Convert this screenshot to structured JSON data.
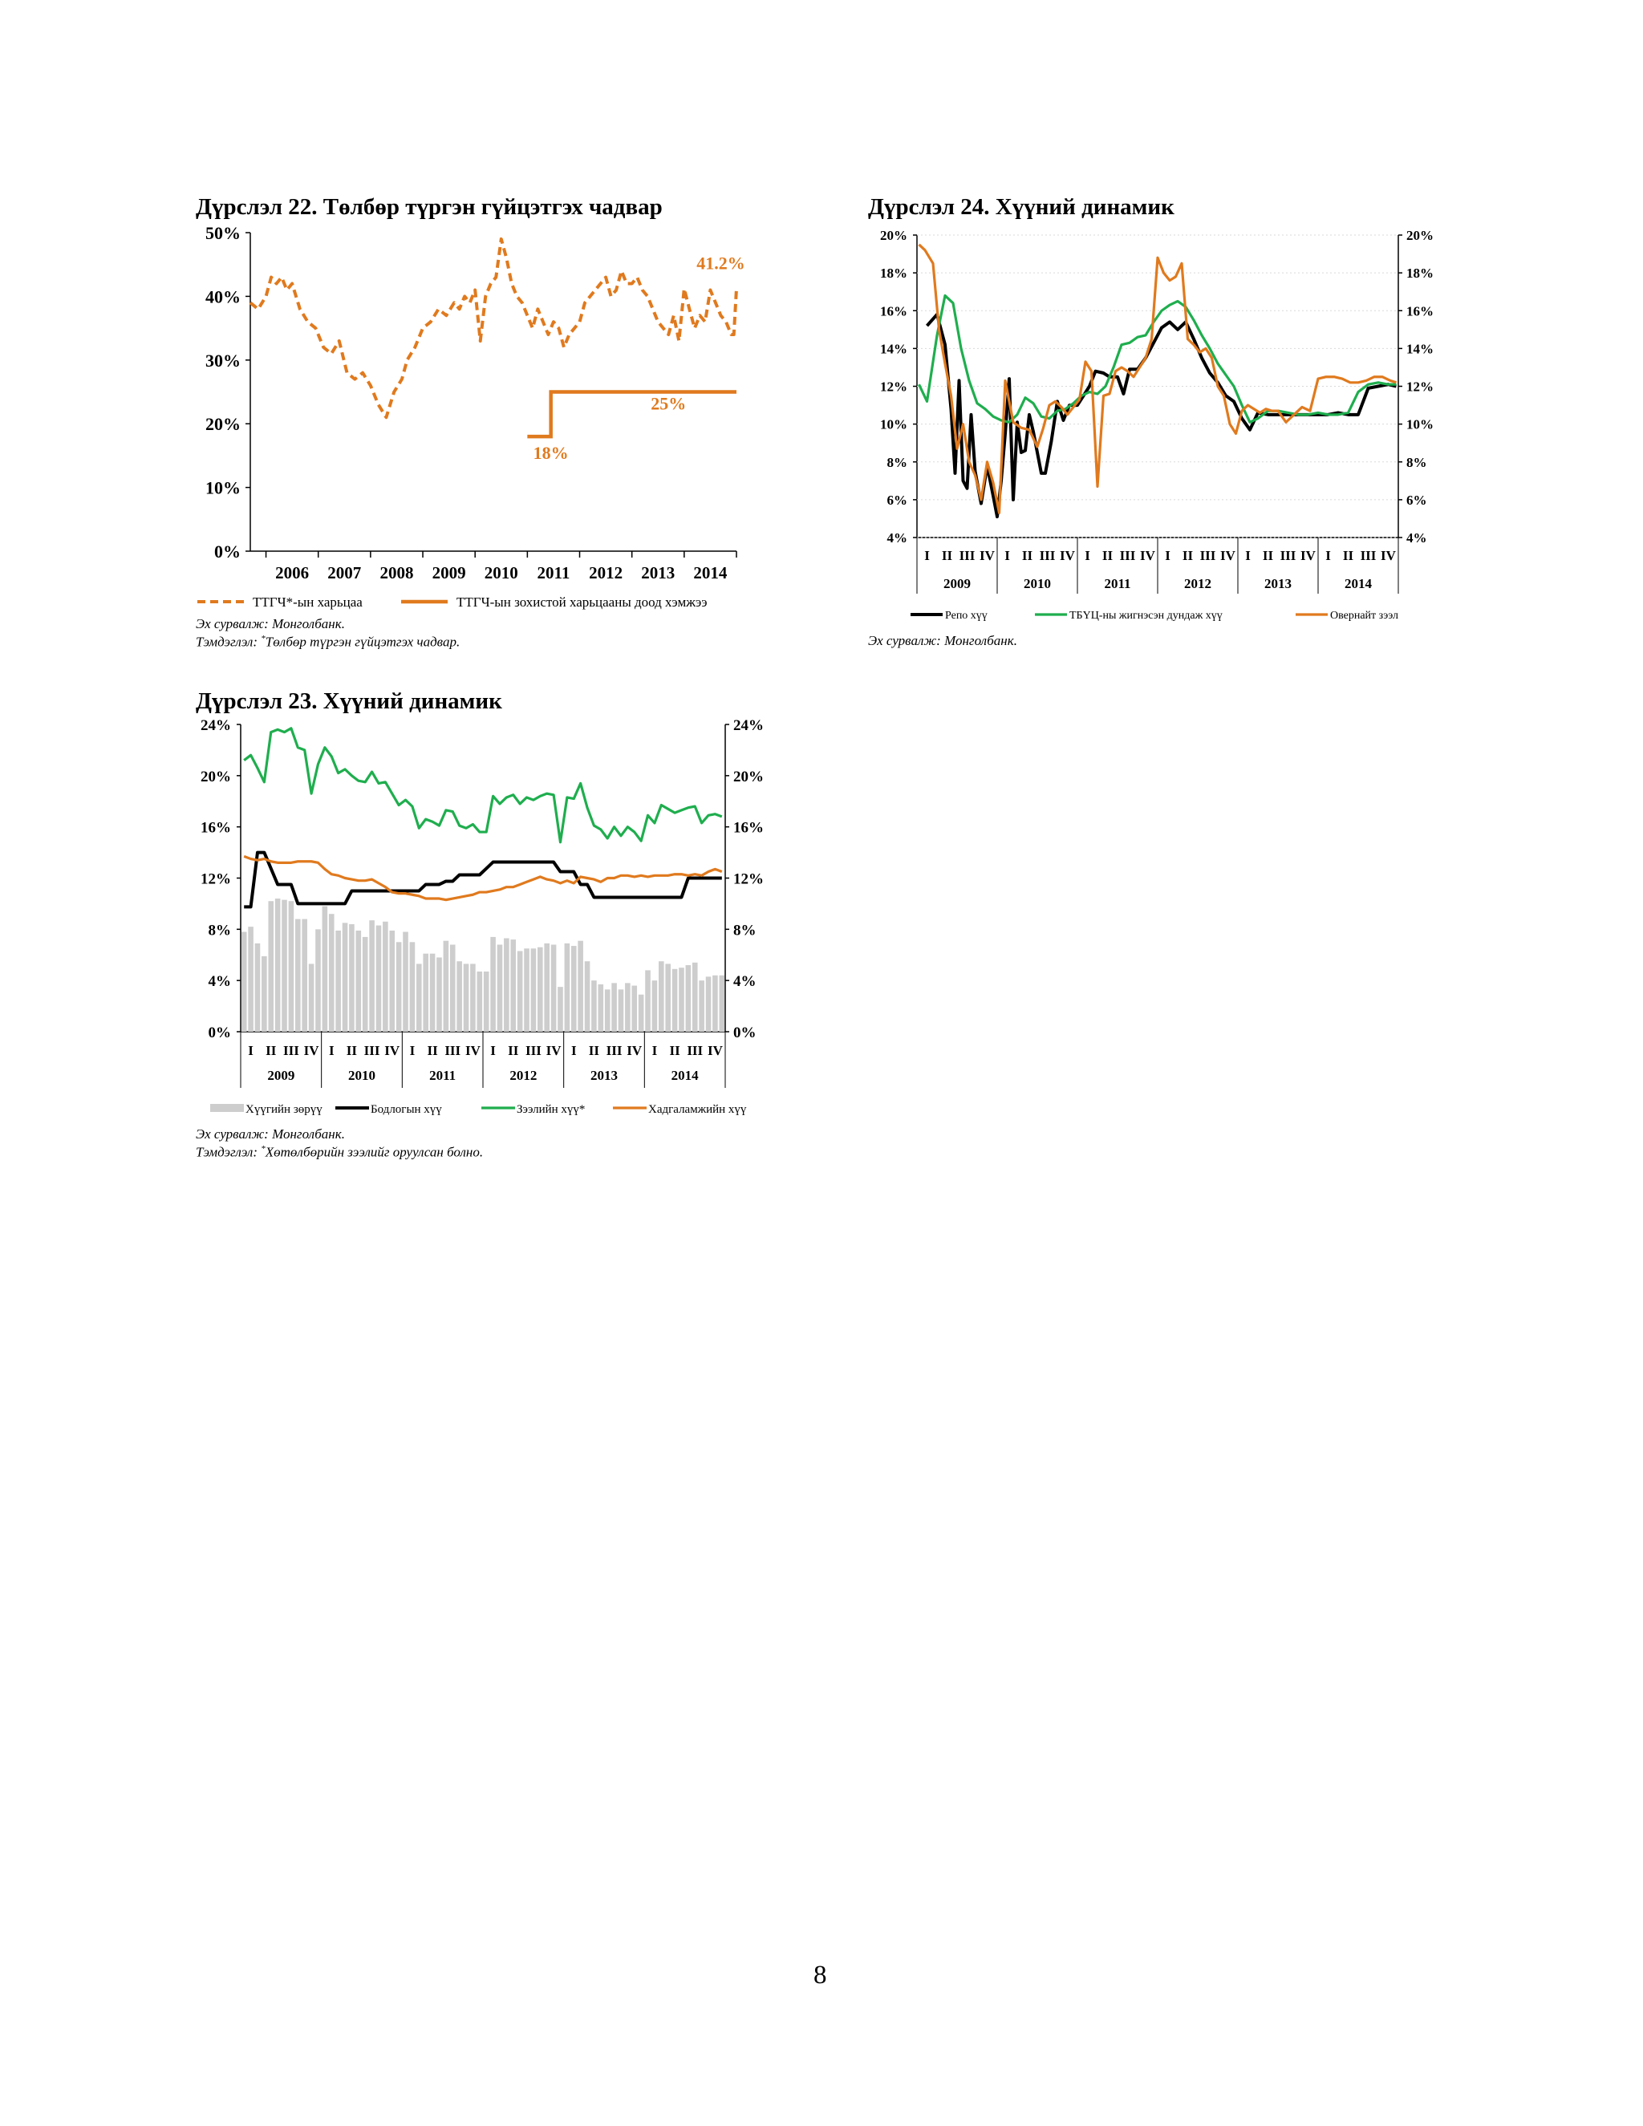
{
  "page_number": "8",
  "colors": {
    "orange": "#E07A1E",
    "black": "#000000",
    "green": "#1FAE4E",
    "grey": "#CDCDCD"
  },
  "figures": {
    "fig22": {
      "title": "Дүрслэл 22. Төлбөр түргэн гүйцэтгэх чадвар",
      "source": "Эх сурвалж: Монголбанк.",
      "note_prefix": "Тэмдэглэл: ",
      "note_mark": "*",
      "note_text": "Төлбөр түргэн гүйцэтгэх чадвар."
    },
    "fig23": {
      "title": "Дүрслэл 23. Хүүний динамик",
      "source": "Эх сурвалж: Монголбанк.",
      "note_prefix": "Тэмдэглэл: ",
      "note_mark": "*",
      "note_text": "Хөтөлбөрийн зээлийг оруулсан болно."
    },
    "fig24": {
      "title": "Дүрслэл 24. Хүүний динамик",
      "source": "Эх сурвалж: Монголбанк."
    }
  },
  "chart_data": [
    {
      "id": "fig22",
      "type": "line",
      "title": "Дүрслэл 22. Төлбөр түргэн гүйцэтгэх чадвар",
      "ylim": [
        0,
        50
      ],
      "yticks": [
        0,
        10,
        20,
        30,
        40,
        50
      ],
      "ytick_labels": [
        "0%",
        "10%",
        "20%",
        "30%",
        "40%",
        "50%"
      ],
      "xlim": [
        2005.6,
        2014.9
      ],
      "x_labels": [
        "2006",
        "2007",
        "2008",
        "2009",
        "2010",
        "2011",
        "2012",
        "2013",
        "2014"
      ],
      "annotations": [
        {
          "text": "41.2%",
          "x": 2014.6,
          "y": 44.3
        },
        {
          "text": "25%",
          "x": 2013.6,
          "y": 22.2
        },
        {
          "text": "18%",
          "x": 2011.35,
          "y": 14.5
        }
      ],
      "series": [
        {
          "name": "ТТГЧ*-ын харьцаа",
          "style": "dashed",
          "x": [
            2005.6,
            2005.75,
            2005.9,
            2006.0,
            2006.1,
            2006.2,
            2006.3,
            2006.4,
            2006.55,
            2006.7,
            2006.85,
            2007.0,
            2007.15,
            2007.3,
            2007.45,
            2007.6,
            2007.75,
            2007.9,
            2008.05,
            2008.2,
            2008.35,
            2008.5,
            2008.6,
            2008.75,
            2008.9,
            2009.05,
            2009.2,
            2009.35,
            2009.5,
            2009.6,
            2009.7,
            2009.8,
            2009.9,
            2010.0,
            2010.1,
            2010.2,
            2010.3,
            2010.4,
            2010.5,
            2010.6,
            2010.7,
            2010.8,
            2010.9,
            2011.0,
            2011.1,
            2011.2,
            2011.3,
            2011.4,
            2011.5,
            2011.6,
            2011.7,
            2011.8,
            2011.9,
            2012.0,
            2012.1,
            2012.2,
            2012.3,
            2012.4,
            2012.5,
            2012.6,
            2012.7,
            2012.8,
            2012.9,
            2013.0,
            2013.1,
            2013.2,
            2013.3,
            2013.4,
            2013.5,
            2013.6,
            2013.7,
            2013.8,
            2013.9,
            2014.0,
            2014.1,
            2014.2,
            2014.3,
            2014.4,
            2014.5,
            2014.6,
            2014.7,
            2014.8,
            2014.85,
            2014.9
          ],
          "y": [
            39,
            38,
            40,
            43,
            42,
            43,
            41,
            42,
            38,
            36,
            35,
            32,
            31,
            33,
            28,
            27,
            28,
            26,
            23,
            21,
            25,
            27,
            30,
            32,
            35,
            36,
            38,
            37,
            39,
            38,
            40,
            39,
            41,
            33,
            40,
            42,
            43,
            49,
            46,
            42,
            40,
            39,
            37,
            35,
            38,
            36,
            34,
            36,
            35,
            32,
            34,
            35,
            36,
            39,
            40,
            41,
            42,
            43,
            40,
            41,
            44,
            42,
            42,
            43,
            41,
            40,
            38,
            36,
            35,
            34,
            37,
            33,
            41.2,
            38,
            35,
            37,
            36,
            41,
            39,
            37,
            36,
            34,
            34,
            41.2
          ]
        },
        {
          "name": "ТТГЧ-ын зохистой харьцааны доод хэмжээ",
          "style": "solid",
          "x": [
            2010.9,
            2011.35,
            2011.35,
            2011.45,
            2014.9
          ],
          "y": [
            18,
            18,
            25,
            25,
            25
          ]
        }
      ]
    },
    {
      "id": "fig23",
      "type": "bar+line",
      "title": "Дүрслэл 23. Хүүний динамик",
      "ylim": [
        0,
        24
      ],
      "yticks": [
        0,
        4,
        8,
        12,
        16,
        20,
        24
      ],
      "ytick_labels": [
        "0%",
        "4%",
        "8%",
        "12%",
        "16%",
        "20%",
        "24%"
      ],
      "quarters": [
        "I",
        "II",
        "III",
        "IV"
      ],
      "years": [
        "2009",
        "2010",
        "2011",
        "2012",
        "2013",
        "2014"
      ],
      "series": [
        {
          "name": "Хүүгийн зөрүү",
          "kind": "bar",
          "values": [
            7.8,
            8.2,
            6.9,
            5.9,
            10.2,
            10.4,
            10.3,
            10.2,
            8.8,
            8.8,
            5.3,
            8,
            9.8,
            9.2,
            7.9,
            8.5,
            8.4,
            7.9,
            7.4,
            8.7,
            8.3,
            8.6,
            7.9,
            7,
            7.8,
            7,
            5.3,
            6.1,
            6.1,
            5.8,
            7.1,
            6.8,
            5.5,
            5.3,
            5.3,
            4.7,
            4.7,
            7.4,
            6.8,
            7.3,
            7.2,
            6.3,
            6.5,
            6.5,
            6.6,
            6.9,
            6.8,
            3.5,
            6.9,
            6.7,
            7.1,
            5.5,
            4,
            3.7,
            3.3,
            3.8,
            3.3,
            3.8,
            3.6,
            2.9,
            4.8,
            4,
            5.5,
            5.3,
            4.9,
            5,
            5.2,
            5.4,
            4,
            4.3,
            4.4,
            4.4
          ]
        },
        {
          "name": "Бодлогын хүү",
          "kind": "line",
          "values": [
            9.75,
            9.75,
            14,
            14,
            12.75,
            11.5,
            11.5,
            11.5,
            10,
            10,
            10,
            10,
            10,
            10,
            10,
            10,
            11,
            11,
            11,
            11,
            11,
            11,
            11,
            11,
            11,
            11,
            11,
            11.5,
            11.5,
            11.5,
            11.75,
            11.75,
            12.25,
            12.25,
            12.25,
            12.25,
            12.75,
            13.25,
            13.25,
            13.25,
            13.25,
            13.25,
            13.25,
            13.25,
            13.25,
            13.25,
            13.25,
            12.5,
            12.5,
            12.5,
            11.5,
            11.5,
            10.5,
            10.5,
            10.5,
            10.5,
            10.5,
            10.5,
            10.5,
            10.5,
            10.5,
            10.5,
            10.5,
            10.5,
            10.5,
            10.5,
            12,
            12,
            12,
            12,
            12,
            12
          ]
        },
        {
          "name": "Зээлийн хүү*",
          "kind": "line",
          "values": [
            21.2,
            21.6,
            20.6,
            19.5,
            23.4,
            23.6,
            23.4,
            23.7,
            22.2,
            22.0,
            18.6,
            20.9,
            22.2,
            21.5,
            20.2,
            20.5,
            20.0,
            19.6,
            19.5,
            20.3,
            19.4,
            19.5,
            18.6,
            17.7,
            18.1,
            17.6,
            15.9,
            16.6,
            16.4,
            16.1,
            17.3,
            17.2,
            16.1,
            15.9,
            16.2,
            15.6,
            15.6,
            18.4,
            17.8,
            18.3,
            18.5,
            17.8,
            18.3,
            18.1,
            18.4,
            18.6,
            18.5,
            14.8,
            18.3,
            18.2,
            19.4,
            17.5,
            16.1,
            15.8,
            15.1,
            16.0,
            15.3,
            16.0,
            15.6,
            14.9,
            16.9,
            16.3,
            17.7,
            17.4,
            17.1,
            17.3,
            17.5,
            17.6,
            16.3,
            16.9,
            17.0,
            16.8
          ]
        },
        {
          "name": "Хадгаламжийн хүү",
          "kind": "line",
          "values": [
            13.7,
            13.5,
            13.4,
            13.5,
            13.3,
            13.2,
            13.2,
            13.2,
            13.3,
            13.3,
            13.3,
            13.2,
            12.7,
            12.3,
            12.2,
            12.0,
            11.9,
            11.8,
            11.8,
            11.9,
            11.6,
            11.3,
            10.9,
            10.8,
            10.8,
            10.7,
            10.6,
            10.4,
            10.4,
            10.4,
            10.3,
            10.4,
            10.5,
            10.6,
            10.7,
            10.9,
            10.9,
            11.0,
            11.1,
            11.3,
            11.3,
            11.5,
            11.7,
            11.9,
            12.1,
            11.9,
            11.8,
            11.6,
            11.8,
            11.6,
            12.1,
            12.0,
            11.9,
            11.7,
            12.0,
            12.0,
            12.2,
            12.2,
            12.1,
            12.2,
            12.1,
            12.2,
            12.2,
            12.2,
            12.3,
            12.3,
            12.2,
            12.3,
            12.2,
            12.5,
            12.7,
            12.5
          ]
        }
      ]
    },
    {
      "id": "fig24",
      "type": "line",
      "title": "Дүрслэл 24. Хүүний динамик",
      "ylim": [
        4,
        20
      ],
      "yticks": [
        4,
        6,
        8,
        10,
        12,
        14,
        16,
        18,
        20
      ],
      "ytick_labels": [
        "4%",
        "6%",
        "8%",
        "10%",
        "12%",
        "14%",
        "16%",
        "18%",
        "20%"
      ],
      "quarters": [
        "I",
        "II",
        "III",
        "IV"
      ],
      "years": [
        "2009",
        "2010",
        "2011",
        "2012",
        "2013",
        "2014"
      ],
      "series": [
        {
          "name": "Репо хүү",
          "color": "black",
          "t": [
            0.5,
            1.0,
            1.4,
            1.7,
            1.9,
            2.1,
            2.3,
            2.5,
            2.7,
            2.9,
            3.2,
            3.5,
            3.8,
            4.0,
            4.2,
            4.4,
            4.6,
            4.8,
            5.0,
            5.2,
            5.4,
            5.6,
            5.8,
            6.0,
            6.2,
            6.4,
            6.7,
            7.0,
            7.3,
            7.6,
            8.0,
            8.3,
            8.6,
            8.9,
            9.3,
            9.6,
            10.0,
            10.3,
            10.6,
            11.0,
            11.4,
            11.8,
            12.2,
            12.6,
            13.0,
            13.4,
            13.8,
            14.2,
            14.6,
            15.0,
            15.4,
            15.8,
            16.2,
            16.6,
            17.0,
            17.5,
            18.0,
            18.5,
            19.0,
            19.5,
            20.0,
            20.5,
            21.0,
            21.5,
            22.0,
            22.5,
            23.0,
            23.5,
            23.9
          ],
          "y": [
            15.2,
            15.8,
            14.2,
            10.8,
            7.4,
            12.3,
            7.0,
            6.6,
            10.5,
            7.5,
            5.8,
            7.8,
            6.2,
            5.1,
            7.0,
            9.5,
            12.4,
            6.0,
            10.1,
            8.5,
            8.6,
            10.5,
            9.6,
            8.5,
            7.4,
            7.4,
            9.1,
            11.2,
            10.2,
            11.0,
            11.0,
            11.5,
            12.0,
            12.8,
            12.7,
            12.5,
            12.5,
            11.6,
            12.9,
            12.9,
            13.5,
            14.3,
            15.1,
            15.4,
            15.0,
            15.4,
            14.5,
            13.5,
            12.7,
            12.2,
            11.5,
            11.2,
            10.3,
            9.7,
            10.6,
            10.5,
            10.5,
            10.5,
            10.5,
            10.5,
            10.5,
            10.5,
            10.6,
            10.5,
            10.5,
            11.9,
            12.0,
            12.1,
            12.0
          ]
        },
        {
          "name": "ТБҮЦ-ны жигнэсэн дундаж хүү",
          "color": "green",
          "t": [
            0.1,
            0.5,
            1.0,
            1.4,
            1.8,
            2.2,
            2.6,
            3.0,
            3.4,
            3.8,
            4.2,
            4.6,
            5.0,
            5.4,
            5.8,
            6.2,
            6.6,
            7.0,
            7.4,
            7.8,
            8.2,
            8.6,
            9.0,
            9.4,
            9.8,
            10.2,
            10.6,
            11.0,
            11.4,
            11.8,
            12.2,
            12.6,
            13.0,
            13.4,
            13.8,
            14.2,
            14.6,
            15.0,
            15.4,
            15.8,
            16.2,
            16.6,
            17.0,
            17.5,
            18.0,
            18.5,
            19.0,
            19.5,
            20.0,
            20.5,
            21.0,
            21.5,
            22.0,
            22.5,
            23.0,
            23.5,
            23.9
          ],
          "y": [
            12.1,
            11.2,
            14.7,
            16.8,
            16.4,
            14.0,
            12.3,
            11.1,
            10.8,
            10.4,
            10.2,
            10.1,
            10.5,
            11.4,
            11.1,
            10.4,
            10.3,
            10.7,
            10.8,
            11.1,
            11.5,
            11.7,
            11.6,
            12.0,
            13.0,
            14.2,
            14.3,
            14.6,
            14.7,
            15.4,
            16.0,
            16.3,
            16.5,
            16.2,
            15.5,
            14.7,
            14.0,
            13.2,
            12.6,
            12.0,
            11.0,
            10.1,
            10.3,
            10.7,
            10.7,
            10.6,
            10.5,
            10.5,
            10.6,
            10.5,
            10.5,
            10.6,
            11.7,
            12.1,
            12.2,
            12.1,
            12.1
          ]
        },
        {
          "name": "Овернайт зээл",
          "color": "orange",
          "t": [
            0.1,
            0.4,
            0.8,
            1.1,
            1.4,
            1.7,
            2.0,
            2.3,
            2.6,
            2.9,
            3.2,
            3.5,
            3.8,
            4.1,
            4.4,
            4.8,
            5.2,
            5.6,
            6.0,
            6.3,
            6.6,
            6.9,
            7.2,
            7.5,
            7.8,
            8.1,
            8.4,
            8.7,
            9.0,
            9.3,
            9.6,
            9.9,
            10.2,
            10.5,
            10.8,
            11.1,
            11.4,
            11.7,
            12.0,
            12.3,
            12.6,
            12.9,
            13.2,
            13.5,
            13.8,
            14.1,
            14.4,
            14.7,
            15.0,
            15.3,
            15.6,
            15.9,
            16.2,
            16.5,
            16.8,
            17.1,
            17.4,
            17.7,
            18.0,
            18.4,
            18.8,
            19.2,
            19.6,
            20.0,
            20.4,
            20.8,
            21.2,
            21.6,
            22.0,
            22.4,
            22.8,
            23.2,
            23.6,
            23.9
          ],
          "y": [
            19.5,
            19.2,
            18.5,
            15.0,
            13.2,
            11.5,
            8.7,
            10.0,
            8.0,
            7.3,
            6.0,
            8.0,
            6.9,
            5.3,
            12.3,
            10.1,
            9.8,
            9.7,
            8.8,
            9.8,
            11.0,
            11.2,
            10.9,
            10.5,
            10.9,
            11.3,
            13.3,
            12.8,
            6.7,
            11.5,
            11.6,
            12.8,
            13.0,
            12.8,
            12.5,
            13.0,
            13.5,
            14.5,
            18.8,
            18.0,
            17.6,
            17.8,
            18.5,
            14.5,
            14.2,
            13.8,
            14.0,
            13.5,
            12.0,
            11.5,
            10.0,
            9.5,
            10.7,
            11.0,
            10.8,
            10.6,
            10.8,
            10.7,
            10.7,
            10.1,
            10.5,
            10.9,
            10.7,
            12.4,
            12.5,
            12.5,
            12.4,
            12.2,
            12.2,
            12.3,
            12.5,
            12.5,
            12.3,
            12.2
          ]
        }
      ]
    }
  ]
}
